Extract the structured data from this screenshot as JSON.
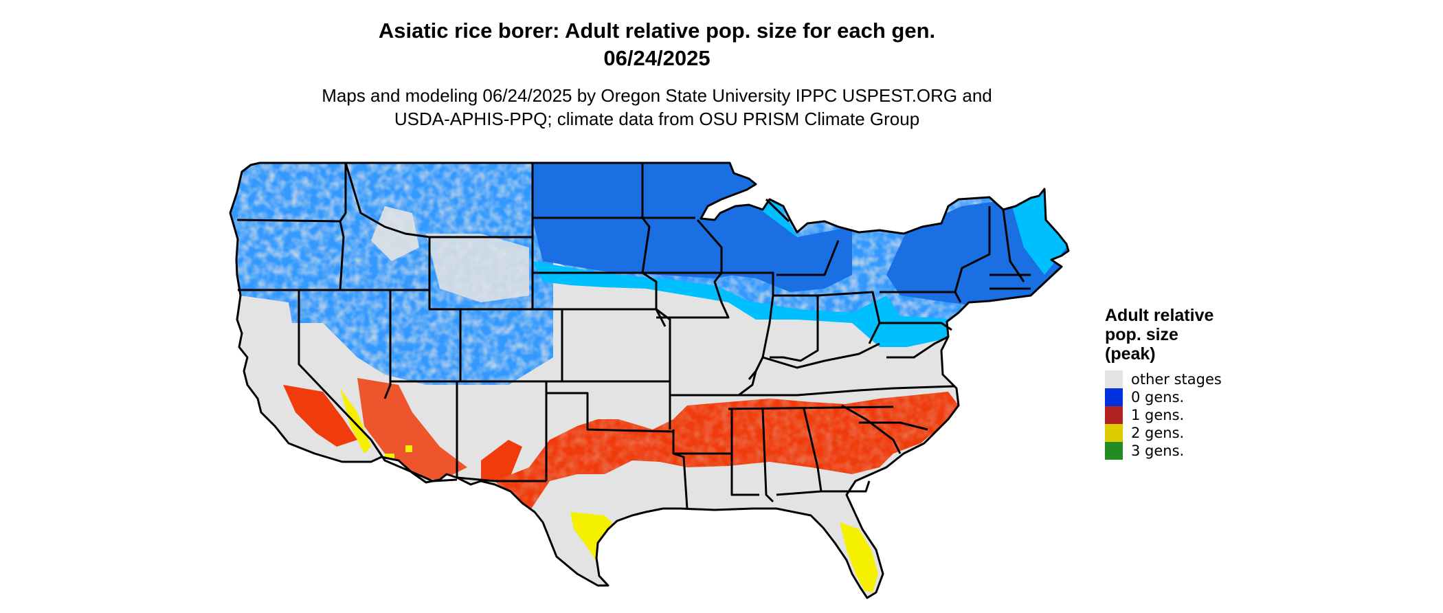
{
  "title": {
    "line1": "Asiatic rice borer: Adult relative pop. size for each gen.",
    "line2": "06/24/2025"
  },
  "subtitle": {
    "line1": "Maps and modeling 06/24/2025 by Oregon State University IPPC USPEST.ORG and",
    "line2": "USDA-APHIS-PPQ; climate data from OSU PRISM Climate Group"
  },
  "legend": {
    "title_lines": [
      "Adult relative",
      "pop. size",
      "(peak)"
    ],
    "items": [
      {
        "label": "other stages",
        "color": "#e3e3e3"
      },
      {
        "label": "0 gens.",
        "color": "#0033dd"
      },
      {
        "label": "1 gens.",
        "color": "#b22222"
      },
      {
        "label": "2 gens.",
        "color": "#ddcc00"
      },
      {
        "label": "3 gens.",
        "color": "#228b22"
      }
    ]
  },
  "map_colors": {
    "background_land": "#e3e3e3",
    "blue_dark": "#1a6fe3",
    "blue_mid": "#3399ff",
    "blue_light": "#00bfff",
    "red_orange": "#f03c0c",
    "yellow": "#f5f000",
    "border": "#000000"
  }
}
